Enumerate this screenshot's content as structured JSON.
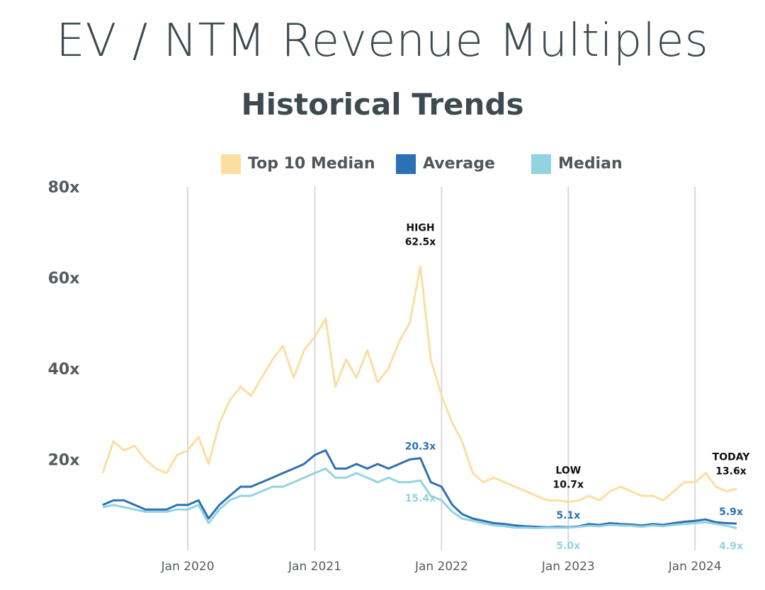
{
  "chart_data": {
    "type": "line",
    "title": "EV / NTM Revenue Multiples",
    "subtitle": "Historical Trends",
    "xlabel": "",
    "ylabel": "",
    "ylim": [
      0,
      80
    ],
    "y_ticks": [
      {
        "value": 20,
        "label": "20x"
      },
      {
        "value": 40,
        "label": "40x"
      },
      {
        "value": 60,
        "label": "60x"
      },
      {
        "value": 80,
        "label": "80x"
      }
    ],
    "xlim": [
      "2019-05-01",
      "2024-04-30"
    ],
    "x_ticks": [
      {
        "date": "2020-01-01",
        "label": "Jan 2020"
      },
      {
        "date": "2021-01-01",
        "label": "Jan 2021"
      },
      {
        "date": "2022-01-01",
        "label": "Jan 2022"
      },
      {
        "date": "2023-01-01",
        "label": "Jan 2023"
      },
      {
        "date": "2024-01-01",
        "label": "Jan 2024"
      }
    ],
    "grid": {
      "vertical": true,
      "horizontal": false
    },
    "legend_position": "top-center",
    "series": [
      {
        "name": "Top 10 Median",
        "color": "#fddea0",
        "x": [
          "2019-05-01",
          "2019-06-01",
          "2019-07-01",
          "2019-08-01",
          "2019-09-01",
          "2019-10-01",
          "2019-11-01",
          "2019-12-01",
          "2020-01-01",
          "2020-02-01",
          "2020-03-01",
          "2020-04-01",
          "2020-05-01",
          "2020-06-01",
          "2020-07-01",
          "2020-08-01",
          "2020-09-01",
          "2020-10-01",
          "2020-11-01",
          "2020-12-01",
          "2021-01-01",
          "2021-02-01",
          "2021-03-01",
          "2021-04-01",
          "2021-05-01",
          "2021-06-01",
          "2021-07-01",
          "2021-08-01",
          "2021-09-01",
          "2021-10-01",
          "2021-11-01",
          "2021-12-01",
          "2022-01-01",
          "2022-02-01",
          "2022-03-01",
          "2022-04-01",
          "2022-05-01",
          "2022-06-01",
          "2022-07-01",
          "2022-08-01",
          "2022-09-01",
          "2022-10-01",
          "2022-11-01",
          "2022-12-01",
          "2023-01-01",
          "2023-02-01",
          "2023-03-01",
          "2023-04-01",
          "2023-05-01",
          "2023-06-01",
          "2023-07-01",
          "2023-08-01",
          "2023-09-01",
          "2023-10-01",
          "2023-11-01",
          "2023-12-01",
          "2024-01-01",
          "2024-02-01",
          "2024-03-01",
          "2024-04-01",
          "2024-04-30"
        ],
        "values": [
          17,
          24,
          22,
          23,
          20,
          18,
          17,
          21,
          22,
          25,
          19,
          28,
          33,
          36,
          34,
          38,
          42,
          45,
          38,
          44,
          47,
          51,
          36,
          42,
          38,
          44,
          37,
          40,
          46,
          50,
          62.5,
          42,
          34,
          28,
          24,
          17,
          15,
          16,
          15,
          14,
          13,
          12,
          11,
          11,
          10.7,
          11,
          12,
          11,
          13,
          14,
          13,
          12,
          12,
          11,
          13,
          15,
          15,
          17,
          14,
          13,
          13.6
        ]
      },
      {
        "name": "Average",
        "color": "#2c70b5",
        "x": [
          "2019-05-01",
          "2019-06-01",
          "2019-07-01",
          "2019-08-01",
          "2019-09-01",
          "2019-10-01",
          "2019-11-01",
          "2019-12-01",
          "2020-01-01",
          "2020-02-01",
          "2020-03-01",
          "2020-04-01",
          "2020-05-01",
          "2020-06-01",
          "2020-07-01",
          "2020-08-01",
          "2020-09-01",
          "2020-10-01",
          "2020-11-01",
          "2020-12-01",
          "2021-01-01",
          "2021-02-01",
          "2021-03-01",
          "2021-04-01",
          "2021-05-01",
          "2021-06-01",
          "2021-07-01",
          "2021-08-01",
          "2021-09-01",
          "2021-10-01",
          "2021-11-01",
          "2021-12-01",
          "2022-01-01",
          "2022-02-01",
          "2022-03-01",
          "2022-04-01",
          "2022-05-01",
          "2022-06-01",
          "2022-07-01",
          "2022-08-01",
          "2022-09-01",
          "2022-10-01",
          "2022-11-01",
          "2022-12-01",
          "2023-01-01",
          "2023-02-01",
          "2023-03-01",
          "2023-04-01",
          "2023-05-01",
          "2023-06-01",
          "2023-07-01",
          "2023-08-01",
          "2023-09-01",
          "2023-10-01",
          "2023-11-01",
          "2023-12-01",
          "2024-01-01",
          "2024-02-01",
          "2024-03-01",
          "2024-04-01",
          "2024-04-30"
        ],
        "values": [
          10,
          11,
          11,
          10,
          9,
          9,
          9,
          10,
          10,
          11,
          7,
          10,
          12,
          14,
          14,
          15,
          16,
          17,
          18,
          19,
          21,
          22,
          18,
          18,
          19,
          18,
          19,
          18,
          19,
          20,
          20.3,
          15,
          14,
          10,
          8,
          7,
          6.5,
          6,
          5.8,
          5.5,
          5.3,
          5.2,
          5.1,
          5.2,
          5.1,
          5.3,
          5.8,
          5.6,
          6,
          5.8,
          5.7,
          5.5,
          5.8,
          5.6,
          6,
          6.3,
          6.5,
          6.8,
          6.2,
          6.0,
          5.9
        ]
      },
      {
        "name": "Median",
        "color": "#93d3e0",
        "x": [
          "2019-05-01",
          "2019-06-01",
          "2019-07-01",
          "2019-08-01",
          "2019-09-01",
          "2019-10-01",
          "2019-11-01",
          "2019-12-01",
          "2020-01-01",
          "2020-02-01",
          "2020-03-01",
          "2020-04-01",
          "2020-05-01",
          "2020-06-01",
          "2020-07-01",
          "2020-08-01",
          "2020-09-01",
          "2020-10-01",
          "2020-11-01",
          "2020-12-01",
          "2021-01-01",
          "2021-02-01",
          "2021-03-01",
          "2021-04-01",
          "2021-05-01",
          "2021-06-01",
          "2021-07-01",
          "2021-08-01",
          "2021-09-01",
          "2021-10-01",
          "2021-11-01",
          "2021-12-01",
          "2022-01-01",
          "2022-02-01",
          "2022-03-01",
          "2022-04-01",
          "2022-05-01",
          "2022-06-01",
          "2022-07-01",
          "2022-08-01",
          "2022-09-01",
          "2022-10-01",
          "2022-11-01",
          "2022-12-01",
          "2023-01-01",
          "2023-02-01",
          "2023-03-01",
          "2023-04-01",
          "2023-05-01",
          "2023-06-01",
          "2023-07-01",
          "2023-08-01",
          "2023-09-01",
          "2023-10-01",
          "2023-11-01",
          "2023-12-01",
          "2024-01-01",
          "2024-02-01",
          "2024-03-01",
          "2024-04-01",
          "2024-04-30"
        ],
        "values": [
          9.5,
          10,
          9.5,
          9,
          8.5,
          8.5,
          8.5,
          9,
          9,
          10,
          6,
          9,
          11,
          12,
          12,
          13,
          14,
          14,
          15,
          16,
          17,
          18,
          16,
          16,
          17,
          16,
          15,
          16,
          15,
          15,
          15.4,
          12,
          11,
          8.5,
          7,
          6.5,
          6,
          5.5,
          5.3,
          5,
          5,
          4.9,
          5,
          5,
          5.0,
          5.2,
          5.4,
          5.3,
          5.6,
          5.5,
          5.4,
          5.2,
          5.5,
          5.3,
          5.6,
          5.8,
          6,
          6.2,
          5.8,
          5.4,
          4.9
        ]
      }
    ],
    "annotations": [
      {
        "series": "Top 10 Median",
        "x": "2021-11-01",
        "text1": "HIGH",
        "text2": "62.5x",
        "color": "#111111"
      },
      {
        "series": "Average",
        "x": "2021-11-01",
        "text1": "20.3x",
        "color": "#2c70b5"
      },
      {
        "series": "Median",
        "x": "2021-11-01",
        "text1": "15.4x",
        "color": "#93d3e0"
      },
      {
        "series": "Top 10 Median",
        "x": "2023-01-01",
        "text1": "LOW",
        "text2": "10.7x",
        "color": "#111111"
      },
      {
        "series": "Average",
        "x": "2023-01-01",
        "text1": "5.1x",
        "color": "#2c70b5"
      },
      {
        "series": "Median",
        "x": "2023-01-01",
        "text1": "5.0x",
        "color": "#93d3e0"
      },
      {
        "series": "Top 10 Median",
        "x": "2024-04-30",
        "text1": "TODAY",
        "text2": "13.6x",
        "color": "#111111"
      },
      {
        "series": "Average",
        "x": "2024-04-30",
        "text1": "5.9x",
        "color": "#2c70b5"
      },
      {
        "series": "Median",
        "x": "2024-04-30",
        "text1": "4.9x",
        "color": "#93d3e0"
      }
    ]
  }
}
